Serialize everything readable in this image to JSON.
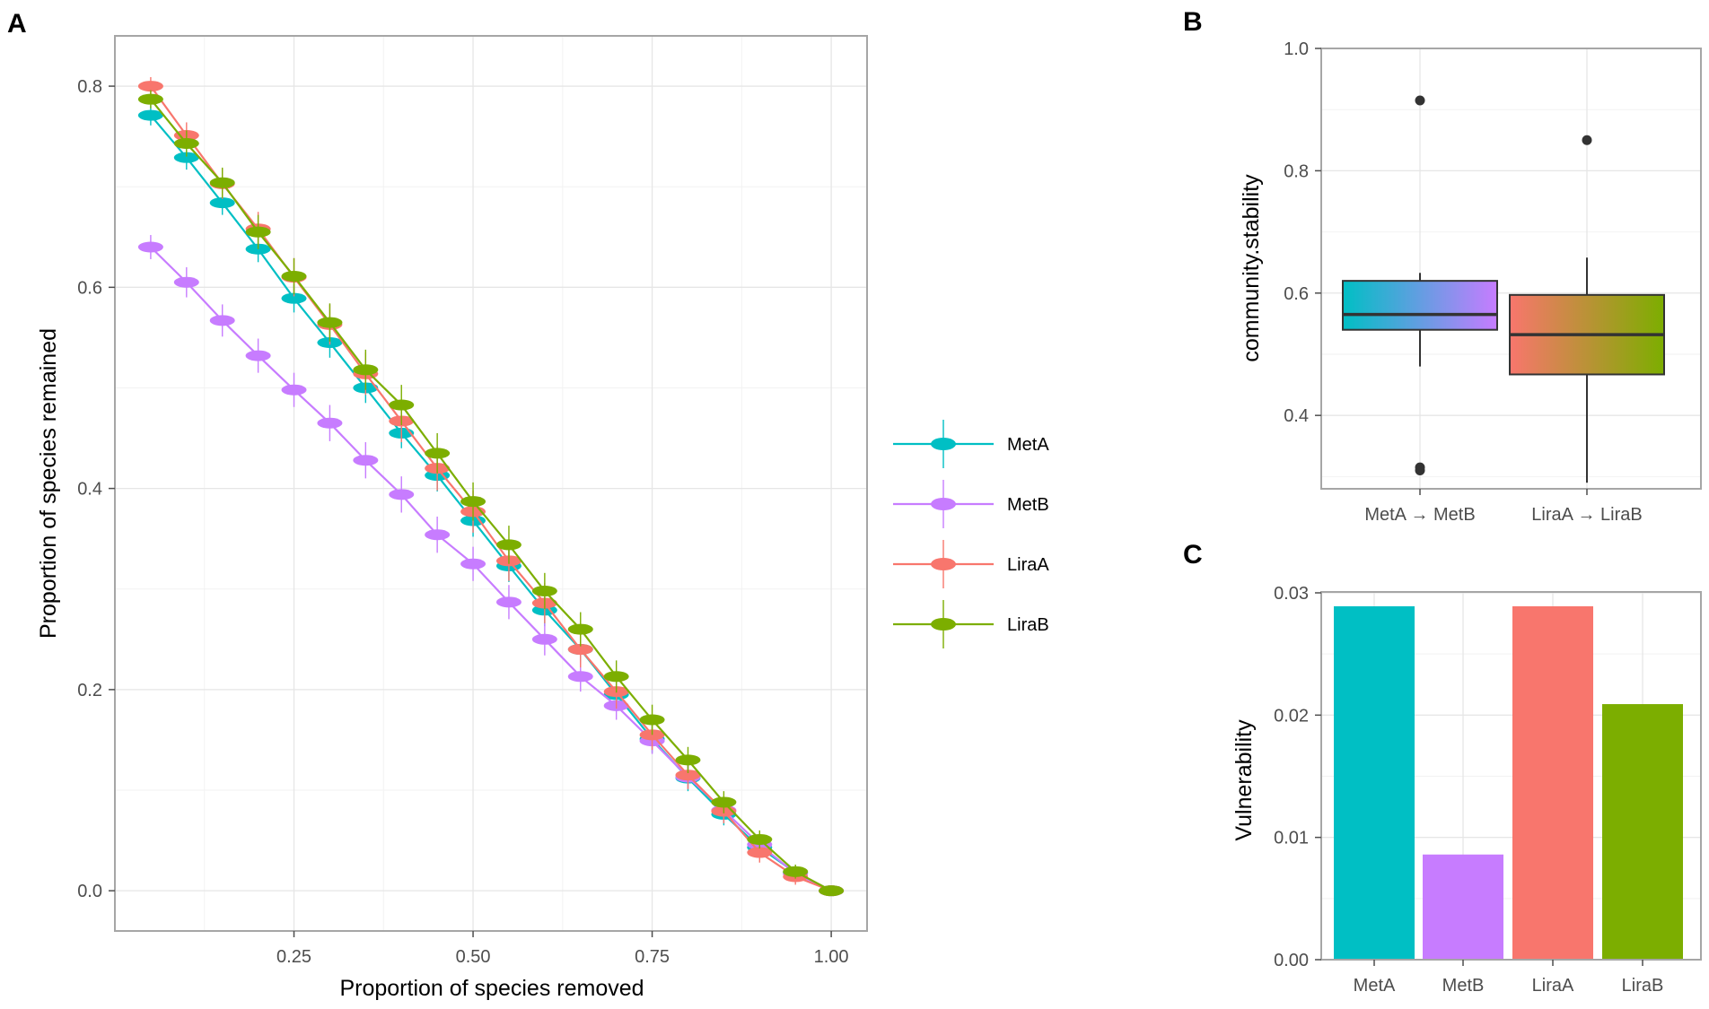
{
  "chart_data": [
    {
      "panel": "A",
      "type": "line",
      "xlabel": "Proportion of species removed",
      "ylabel": "Proportion of species remained",
      "xlim": [
        0.0,
        1.05
      ],
      "ylim": [
        -0.04,
        0.85
      ],
      "xticks": [
        0.25,
        0.5,
        0.75,
        1.0
      ],
      "xtick_labels": [
        "0.25",
        "0.50",
        "0.75",
        "1.00"
      ],
      "yticks": [
        0.0,
        0.2,
        0.4,
        0.6,
        0.8
      ],
      "ytick_labels": [
        "0.0",
        "0.2",
        "0.4",
        "0.6",
        "0.8"
      ],
      "x": [
        0.05,
        0.1,
        0.15,
        0.2,
        0.25,
        0.3,
        0.35,
        0.4,
        0.45,
        0.5,
        0.55,
        0.6,
        0.65,
        0.7,
        0.75,
        0.8,
        0.85,
        0.9,
        0.95,
        1.0
      ],
      "legend_position": "right",
      "series": [
        {
          "name": "MetA",
          "color": "#00BFC4",
          "values": [
            0.771,
            0.729,
            0.684,
            0.638,
            0.589,
            0.545,
            0.5,
            0.455,
            0.413,
            0.368,
            0.323,
            0.279,
            0.24,
            0.195,
            0.151,
            0.112,
            0.076,
            0.043,
            0.018,
            0.0
          ],
          "err": [
            0.01,
            0.012,
            0.012,
            0.013,
            0.014,
            0.015,
            0.015,
            0.015,
            0.016,
            0.016,
            0.016,
            0.016,
            0.014,
            0.014,
            0.014,
            0.013,
            0.011,
            0.009,
            0.007,
            0.002
          ]
        },
        {
          "name": "MetB",
          "color": "#C77CFF",
          "values": [
            0.64,
            0.605,
            0.567,
            0.532,
            0.498,
            0.465,
            0.428,
            0.394,
            0.354,
            0.325,
            0.287,
            0.25,
            0.213,
            0.184,
            0.149,
            0.113,
            0.08,
            0.046,
            0.017,
            0.0
          ],
          "err": [
            0.012,
            0.015,
            0.016,
            0.017,
            0.017,
            0.018,
            0.018,
            0.018,
            0.018,
            0.017,
            0.017,
            0.016,
            0.015,
            0.014,
            0.013,
            0.012,
            0.01,
            0.008,
            0.006,
            0.002
          ]
        },
        {
          "name": "LiraA",
          "color": "#F8766D",
          "values": [
            0.8,
            0.751,
            0.703,
            0.658,
            0.61,
            0.563,
            0.514,
            0.467,
            0.42,
            0.377,
            0.328,
            0.286,
            0.24,
            0.198,
            0.155,
            0.115,
            0.079,
            0.038,
            0.014,
            0.0
          ],
          "err": [
            0.009,
            0.013,
            0.015,
            0.017,
            0.019,
            0.02,
            0.021,
            0.021,
            0.022,
            0.021,
            0.02,
            0.02,
            0.018,
            0.017,
            0.015,
            0.014,
            0.012,
            0.01,
            0.008,
            0.003
          ]
        },
        {
          "name": "LiraB",
          "color": "#7CAE00",
          "values": [
            0.787,
            0.743,
            0.704,
            0.655,
            0.611,
            0.565,
            0.518,
            0.483,
            0.435,
            0.387,
            0.344,
            0.298,
            0.26,
            0.213,
            0.17,
            0.13,
            0.088,
            0.051,
            0.019,
            0.0
          ],
          "err": [
            0.009,
            0.013,
            0.015,
            0.017,
            0.018,
            0.019,
            0.02,
            0.02,
            0.02,
            0.019,
            0.019,
            0.018,
            0.017,
            0.016,
            0.015,
            0.013,
            0.011,
            0.009,
            0.007,
            0.002
          ]
        }
      ]
    },
    {
      "panel": "B",
      "type": "box",
      "xlabel": "",
      "ylabel": "community.stability",
      "ylim": [
        0.28,
        1.0
      ],
      "yticks": [
        0.4,
        0.6,
        0.8,
        1.0
      ],
      "ytick_labels": [
        "0.4",
        "0.6",
        "0.8",
        "1.0"
      ],
      "categories": [
        "MetA → MetB",
        "LiraA → LiraB"
      ],
      "boxes": [
        {
          "name": "MetA → MetB",
          "whisker_low": 0.48,
          "q1": 0.54,
          "median": 0.565,
          "q3": 0.62,
          "whisker_high": 0.633,
          "outliers": [
            0.915,
            0.315,
            0.31
          ],
          "gradient": [
            "#00BFC4",
            "#C77CFF"
          ]
        },
        {
          "name": "LiraA → LiraB",
          "whisker_low": 0.29,
          "q1": 0.467,
          "median": 0.532,
          "q3": 0.597,
          "whisker_high": 0.658,
          "outliers": [
            0.85
          ],
          "gradient": [
            "#F8766D",
            "#7CAE00"
          ]
        }
      ]
    },
    {
      "panel": "C",
      "type": "bar",
      "xlabel": "",
      "ylabel": "Vulnerability",
      "ylim": [
        0.0,
        0.03
      ],
      "yticks": [
        0.0,
        0.01,
        0.02,
        0.03
      ],
      "ytick_labels": [
        "0.00",
        "0.01",
        "0.02",
        "0.03"
      ],
      "categories": [
        "MetA",
        "MetB",
        "LiraA",
        "LiraB"
      ],
      "values": [
        0.0289,
        0.0086,
        0.0289,
        0.0209
      ],
      "colors": [
        "#00BFC4",
        "#C77CFF",
        "#F8766D",
        "#7CAE00"
      ]
    }
  ]
}
